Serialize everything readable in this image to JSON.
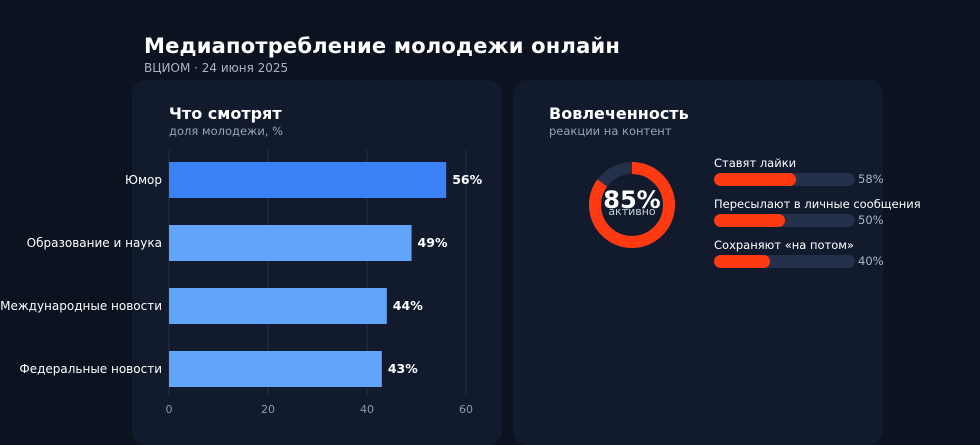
{
  "header": {
    "title": "Медиапотребление молодежи онлайн",
    "subtitle": "ВЦИОМ · 24 июня 2025"
  },
  "left_card": {
    "title": "Что смотрят",
    "subtitle": "доля молодежи, %"
  },
  "right_card": {
    "title": "Вовлеченность",
    "subtitle": "реакции на контент"
  },
  "chart_data": [
    {
      "type": "bar",
      "orientation": "horizontal",
      "title": "Что смотрят",
      "subtitle": "доля молодежи, %",
      "categories": [
        "Юмор",
        "Образование и наука",
        "Международные новости",
        "Федеральные новости"
      ],
      "values": [
        56,
        49,
        44,
        43
      ],
      "value_labels": [
        "56%",
        "49%",
        "44%",
        "43%"
      ],
      "xlim": [
        0,
        60
      ],
      "xticks": [
        0,
        20,
        40,
        60
      ],
      "grid": true,
      "colors": {
        "highlight": "#3b82f6",
        "bar": "#60a5fa",
        "grid": "#243049"
      }
    },
    {
      "type": "pie",
      "variant": "donut",
      "value": 85,
      "center_label": "85%",
      "center_caption": "активно",
      "colors": {
        "fill": "#ff3a12",
        "track": "#25304b"
      }
    },
    {
      "type": "bar",
      "orientation": "horizontal",
      "title": "Вовлеченность",
      "subtitle": "реакции на контент",
      "categories": [
        "Ставят лайки",
        "Пересылают в личные сообщения",
        "Сохраняют «на потом»"
      ],
      "values": [
        58,
        50,
        40
      ],
      "value_labels": [
        "58%",
        "50%",
        "40%"
      ],
      "xlim": [
        0,
        100
      ],
      "colors": {
        "fill": "#ff3a12",
        "track": "#25304b"
      }
    }
  ]
}
